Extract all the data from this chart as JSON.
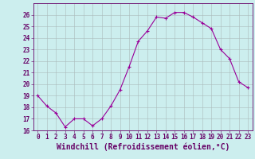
{
  "x": [
    0,
    1,
    2,
    3,
    4,
    5,
    6,
    7,
    8,
    9,
    10,
    11,
    12,
    13,
    14,
    15,
    16,
    17,
    18,
    19,
    20,
    21,
    22,
    23
  ],
  "y": [
    19.0,
    18.1,
    17.5,
    16.3,
    17.0,
    17.0,
    16.4,
    17.0,
    18.1,
    19.5,
    21.5,
    23.7,
    24.6,
    25.8,
    25.7,
    26.2,
    26.2,
    25.8,
    25.3,
    24.8,
    23.0,
    22.2,
    20.2,
    19.7
  ],
  "line_color": "#990099",
  "marker": "+",
  "marker_size": 3,
  "xlabel": "Windchill (Refroidissement éolien,°C)",
  "background_color": "#cceeee",
  "grid_color": "#aabbbb",
  "ylim": [
    16,
    27
  ],
  "xlim": [
    -0.5,
    23.5
  ],
  "yticks": [
    16,
    17,
    18,
    19,
    20,
    21,
    22,
    23,
    24,
    25,
    26
  ],
  "xticks": [
    0,
    1,
    2,
    3,
    4,
    5,
    6,
    7,
    8,
    9,
    10,
    11,
    12,
    13,
    14,
    15,
    16,
    17,
    18,
    19,
    20,
    21,
    22,
    23
  ],
  "tick_fontsize": 5.5,
  "xlabel_fontsize": 7.0,
  "tick_color": "#660066",
  "spine_color": "#660066"
}
